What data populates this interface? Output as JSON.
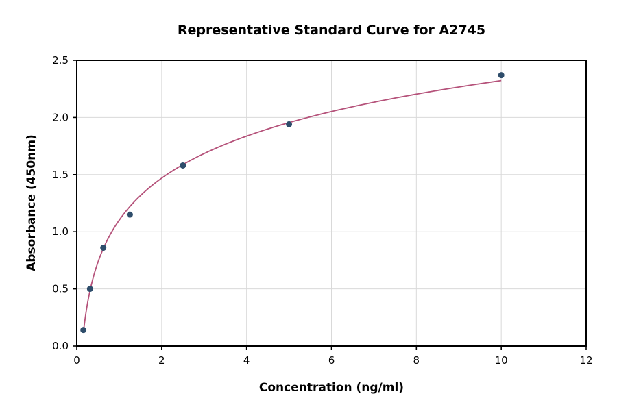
{
  "chart_data": {
    "type": "scatter",
    "title": "Representative Standard Curve for A2745",
    "xlabel": "Concentration (ng/ml)",
    "ylabel": "Absorbance (450nm)",
    "xlim": [
      0,
      12
    ],
    "ylim": [
      0,
      2.5
    ],
    "xticks": [
      0,
      2,
      4,
      6,
      8,
      10,
      12
    ],
    "xtick_labels": [
      "0",
      "2",
      "4",
      "6",
      "8",
      "10",
      "12"
    ],
    "yticks": [
      0,
      0.5,
      1,
      1.5,
      2,
      2.5
    ],
    "ytick_labels": [
      "0.0",
      "0.5",
      "1.0",
      "1.5",
      "2.0",
      "2.5"
    ],
    "grid": true,
    "grid_color": "#d9d9d9",
    "points": {
      "x": [
        0.156,
        0.3125,
        0.625,
        1.25,
        2.5,
        5,
        10
      ],
      "y": [
        0.14,
        0.5,
        0.86,
        1.15,
        1.58,
        1.94,
        2.37
      ],
      "color": "#2e4d6b"
    },
    "fit_curve": {
      "type": "log",
      "color": "#b5527a",
      "x_range": [
        0.156,
        10
      ]
    }
  }
}
